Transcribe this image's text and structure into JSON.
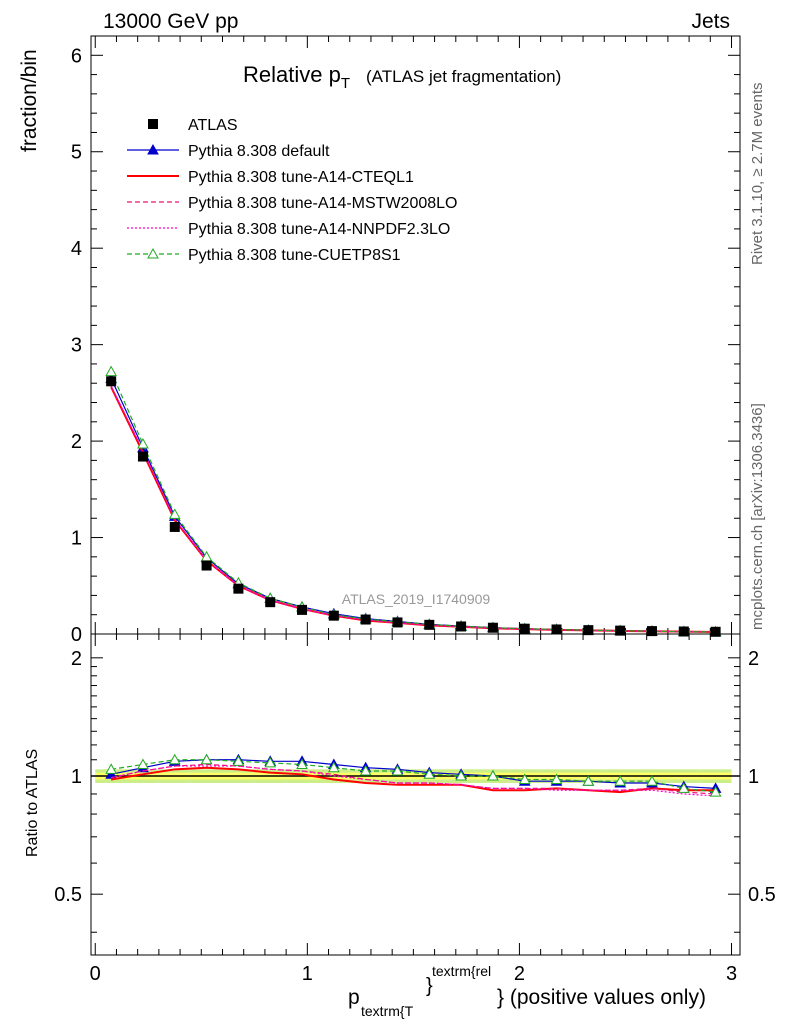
{
  "header": {
    "left": "13000 GeV pp",
    "right": "Jets"
  },
  "title": {
    "main": "Relative p",
    "sub": "T",
    "suffix": "(ATLAS jet fragmentation)"
  },
  "side_labels": {
    "rivet": "Rivet 3.1.10, ≥ 2.7M events",
    "mcplots": "mcplots.cern.ch [arXiv:1306.3436]"
  },
  "watermark": "ATLAS_2019_I1740909",
  "axes": {
    "top_ylabel": "fraction/bin",
    "bottom_ylabel": "Ratio to ATLAS",
    "xlabel_p": "p",
    "xlabel_sub": "textrm{T",
    "xlabel_brace": "}",
    "xlabel_sup": "textrm{rel",
    "xlabel_tail": "} (positive values only)",
    "top_yticks": [
      "0",
      "1",
      "2",
      "3",
      "4",
      "5",
      "6"
    ],
    "bottom_yticks": [
      "0.5",
      "1",
      "2"
    ],
    "xticks": [
      "0",
      "1",
      "2",
      "3"
    ]
  },
  "chart_data": {
    "type": "line",
    "x": [
      0.075,
      0.225,
      0.375,
      0.525,
      0.675,
      0.825,
      0.975,
      1.125,
      1.275,
      1.425,
      1.575,
      1.725,
      1.875,
      2.025,
      2.175,
      2.325,
      2.475,
      2.625,
      2.775,
      2.925
    ],
    "xlim": [
      -0.02,
      3.04
    ],
    "ylim_main": [
      0,
      6.2
    ],
    "ylim_ratio": [
      0.35,
      2.3
    ],
    "log_ratio": true,
    "series": [
      {
        "name": "ATLAS",
        "style": "data",
        "color": "#000000",
        "values": [
          2.62,
          1.84,
          1.11,
          0.71,
          0.47,
          0.33,
          0.25,
          0.19,
          0.15,
          0.12,
          0.095,
          0.078,
          0.065,
          0.055,
          0.047,
          0.04,
          0.035,
          0.03,
          0.026,
          0.023
        ]
      },
      {
        "name": "Pythia 8.308 default",
        "style": "solid-tri",
        "color": "#0000cc",
        "values": [
          2.65,
          1.93,
          1.22,
          0.79,
          0.52,
          0.37,
          0.28,
          0.21,
          0.16,
          0.13,
          0.1,
          0.082,
          0.066,
          0.055,
          0.047,
          0.04,
          0.035,
          0.03,
          0.025,
          0.022
        ]
      },
      {
        "name": "Pythia 8.308 tune-A14-CTEQL1",
        "style": "solid",
        "color": "#ff0000",
        "values": [
          2.56,
          1.88,
          1.18,
          0.76,
          0.5,
          0.35,
          0.26,
          0.19,
          0.14,
          0.115,
          0.09,
          0.075,
          0.06,
          0.05,
          0.043,
          0.037,
          0.032,
          0.028,
          0.024,
          0.021
        ]
      },
      {
        "name": "Pythia 8.308 tune-A14-MSTW2008LO",
        "style": "dashed",
        "color": "#ee1177",
        "values": [
          2.57,
          1.9,
          1.19,
          0.77,
          0.5,
          0.35,
          0.26,
          0.19,
          0.145,
          0.115,
          0.092,
          0.075,
          0.06,
          0.05,
          0.043,
          0.037,
          0.032,
          0.028,
          0.024,
          0.021
        ]
      },
      {
        "name": "Pythia 8.308 tune-A14-NNPDF2.3LO",
        "style": "dotted",
        "color": "#ff00cc",
        "values": [
          2.57,
          1.9,
          1.19,
          0.76,
          0.5,
          0.35,
          0.26,
          0.19,
          0.145,
          0.115,
          0.092,
          0.075,
          0.06,
          0.05,
          0.043,
          0.037,
          0.032,
          0.028,
          0.024,
          0.021
        ]
      },
      {
        "name": "Pythia 8.308 tune-CUETP8S1",
        "style": "dashed-tri",
        "color": "#22aa22",
        "values": [
          2.72,
          1.97,
          1.24,
          0.8,
          0.53,
          0.37,
          0.28,
          0.2,
          0.155,
          0.125,
          0.1,
          0.08,
          0.065,
          0.054,
          0.046,
          0.039,
          0.034,
          0.029,
          0.024,
          0.021
        ]
      }
    ],
    "ratios": [
      {
        "name": "Pythia 8.308 default",
        "values": [
          1.01,
          1.05,
          1.09,
          1.1,
          1.1,
          1.09,
          1.09,
          1.07,
          1.05,
          1.04,
          1.02,
          1.01,
          1.0,
          0.97,
          0.97,
          0.97,
          0.96,
          0.96,
          0.94,
          0.93
        ]
      },
      {
        "name": "Pythia 8.308 tune-A14-CTEQL1",
        "values": [
          0.98,
          1.01,
          1.04,
          1.05,
          1.04,
          1.02,
          1.01,
          0.98,
          0.96,
          0.95,
          0.95,
          0.95,
          0.92,
          0.92,
          0.93,
          0.92,
          0.91,
          0.93,
          0.92,
          0.92
        ]
      },
      {
        "name": "Pythia 8.308 tune-A14-MSTW2008LO",
        "values": [
          0.99,
          1.03,
          1.06,
          1.07,
          1.06,
          1.04,
          1.03,
          1.01,
          0.98,
          0.96,
          0.96,
          0.95,
          0.93,
          0.93,
          0.93,
          0.92,
          0.92,
          0.93,
          0.91,
          0.9
        ]
      },
      {
        "name": "Pythia 8.308 tune-A14-NNPDF2.3LO",
        "values": [
          0.99,
          1.03,
          1.06,
          1.06,
          1.06,
          1.04,
          1.03,
          1.0,
          0.98,
          0.96,
          0.96,
          0.95,
          0.93,
          0.93,
          0.92,
          0.92,
          0.92,
          0.92,
          0.9,
          0.89
        ]
      },
      {
        "name": "Pythia 8.308 tune-CUETP8S1",
        "values": [
          1.04,
          1.07,
          1.1,
          1.1,
          1.09,
          1.08,
          1.07,
          1.05,
          1.03,
          1.03,
          1.01,
          1.0,
          1.0,
          0.98,
          0.98,
          0.97,
          0.97,
          0.97,
          0.93,
          0.91
        ]
      }
    ],
    "uncertainty_band": {
      "stat": 0.02,
      "total": 0.04,
      "colors": [
        "#ffff66",
        "#ccee88"
      ]
    }
  }
}
